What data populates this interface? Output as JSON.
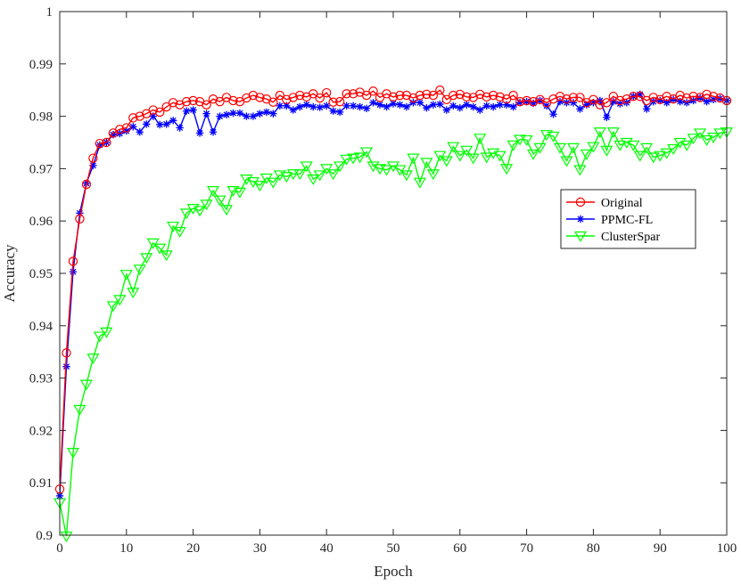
{
  "chart_data": {
    "type": "line",
    "title": "",
    "xlabel": "Epoch",
    "ylabel": "Accuracy",
    "xlim": [
      0,
      100
    ],
    "ylim": [
      0.9,
      1.0
    ],
    "xticks": [
      "0",
      "10",
      "20",
      "30",
      "40",
      "50",
      "60",
      "70",
      "80",
      "90",
      "100"
    ],
    "yticks": [
      "0.9",
      "0.91",
      "0.92",
      "0.93",
      "0.94",
      "0.95",
      "0.96",
      "0.97",
      "0.98",
      "0.99",
      "1"
    ],
    "grid": false,
    "legend_position": "center-right",
    "series": [
      {
        "name": "Original",
        "color": "#ff0000",
        "marker": "circle",
        "values": [
          0.9088,
          0.9348,
          0.9523,
          0.9604,
          0.967,
          0.972,
          0.9748,
          0.975,
          0.9768,
          0.9775,
          0.9778,
          0.9797,
          0.98,
          0.9805,
          0.9812,
          0.9808,
          0.9818,
          0.9826,
          0.9822,
          0.9828,
          0.983,
          0.9828,
          0.9822,
          0.9833,
          0.9828,
          0.9836,
          0.983,
          0.9828,
          0.9835,
          0.984,
          0.9836,
          0.9833,
          0.9827,
          0.984,
          0.9832,
          0.9836,
          0.984,
          0.9837,
          0.9843,
          0.9835,
          0.9845,
          0.9827,
          0.9828,
          0.9843,
          0.9843,
          0.9846,
          0.984,
          0.9848,
          0.9836,
          0.9843,
          0.9837,
          0.984,
          0.984,
          0.9835,
          0.984,
          0.9842,
          0.984,
          0.985,
          0.9832,
          0.984,
          0.9842,
          0.9837,
          0.9836,
          0.9842,
          0.9837,
          0.984,
          0.9837,
          0.9833,
          0.984,
          0.9828,
          0.983,
          0.9828,
          0.9832,
          0.9826,
          0.9833,
          0.9838,
          0.9833,
          0.9836,
          0.9836,
          0.9826,
          0.9832,
          0.9822,
          0.9826,
          0.9838,
          0.983,
          0.9833,
          0.9838,
          0.9838,
          0.983,
          0.9836,
          0.9832,
          0.9838,
          0.9833,
          0.984,
          0.9835,
          0.9838,
          0.9836,
          0.9842,
          0.9838,
          0.9835,
          0.983
        ]
      },
      {
        "name": "PPMC-FL",
        "color": "#0000ff",
        "marker": "asterisk",
        "values": [
          0.9075,
          0.9322,
          0.9503,
          0.9615,
          0.9672,
          0.9706,
          0.9745,
          0.975,
          0.9765,
          0.9767,
          0.9772,
          0.978,
          0.977,
          0.9785,
          0.98,
          0.9784,
          0.9785,
          0.9792,
          0.9778,
          0.981,
          0.9812,
          0.9768,
          0.9805,
          0.977,
          0.98,
          0.9803,
          0.9806,
          0.9806,
          0.98,
          0.98,
          0.9805,
          0.9808,
          0.9805,
          0.982,
          0.982,
          0.9812,
          0.9818,
          0.9822,
          0.9818,
          0.9817,
          0.982,
          0.981,
          0.9808,
          0.982,
          0.982,
          0.9818,
          0.9815,
          0.9826,
          0.9822,
          0.9818,
          0.9824,
          0.9822,
          0.9818,
          0.9826,
          0.9826,
          0.9816,
          0.9822,
          0.9823,
          0.9812,
          0.982,
          0.9816,
          0.9822,
          0.9818,
          0.9812,
          0.982,
          0.9818,
          0.9822,
          0.9822,
          0.9818,
          0.9826,
          0.9828,
          0.9825,
          0.983,
          0.982,
          0.9804,
          0.9828,
          0.9826,
          0.9826,
          0.9814,
          0.9822,
          0.9826,
          0.983,
          0.9798,
          0.9828,
          0.9824,
          0.9826,
          0.9838,
          0.9842,
          0.9814,
          0.9828,
          0.983,
          0.9826,
          0.9832,
          0.9828,
          0.9826,
          0.983,
          0.9835,
          0.9828,
          0.9832,
          0.9834,
          0.983
        ]
      },
      {
        "name": "ClusterSpar",
        "color": "#00ff00",
        "marker": "triangle-down",
        "values": [
          0.9062,
          0.8998,
          0.9158,
          0.924,
          0.9288,
          0.9338,
          0.938,
          0.9388,
          0.9438,
          0.945,
          0.9498,
          0.9464,
          0.9508,
          0.953,
          0.9558,
          0.9548,
          0.9535,
          0.959,
          0.958,
          0.9615,
          0.9624,
          0.962,
          0.9632,
          0.9658,
          0.964,
          0.9622,
          0.9658,
          0.9655,
          0.968,
          0.9675,
          0.9668,
          0.9682,
          0.9674,
          0.9688,
          0.9685,
          0.969,
          0.969,
          0.9705,
          0.968,
          0.9688,
          0.97,
          0.969,
          0.9705,
          0.9718,
          0.972,
          0.9722,
          0.9732,
          0.9705,
          0.97,
          0.9698,
          0.9705,
          0.9698,
          0.9688,
          0.972,
          0.9674,
          0.9712,
          0.969,
          0.9725,
          0.9715,
          0.9742,
          0.9725,
          0.9735,
          0.972,
          0.9758,
          0.9722,
          0.973,
          0.9725,
          0.97,
          0.9745,
          0.9756,
          0.9755,
          0.9728,
          0.974,
          0.9765,
          0.9762,
          0.974,
          0.9715,
          0.974,
          0.9698,
          0.9728,
          0.9742,
          0.977,
          0.9735,
          0.977,
          0.9745,
          0.975,
          0.9745,
          0.9725,
          0.974,
          0.9722,
          0.9725,
          0.973,
          0.9738,
          0.975,
          0.9745,
          0.9758,
          0.9768,
          0.9755,
          0.976,
          0.9768,
          0.977
        ]
      }
    ]
  }
}
